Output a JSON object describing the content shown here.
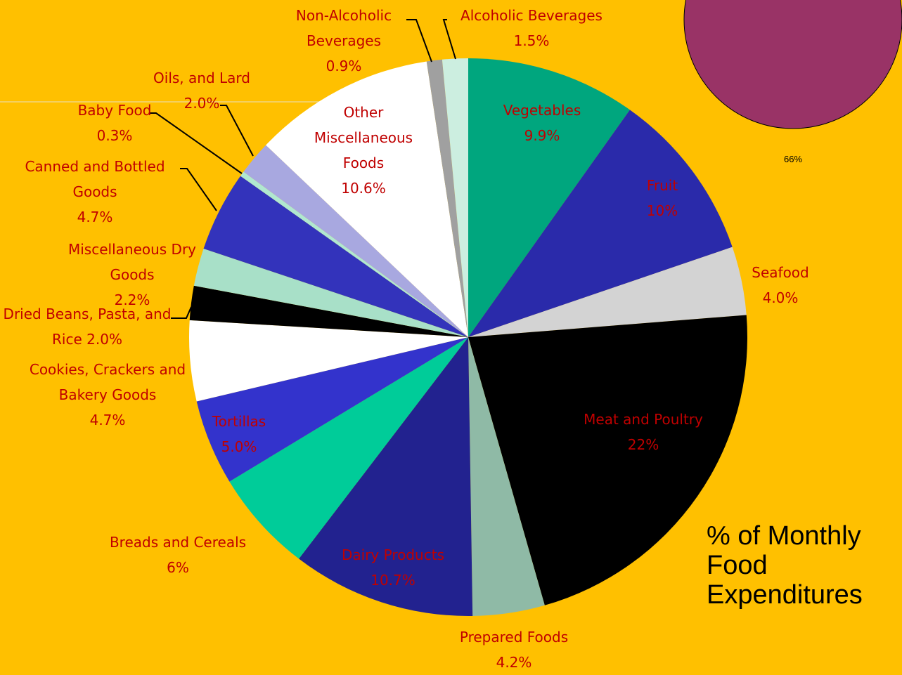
{
  "chart_data": [
    {
      "type": "pie",
      "title": "% of Monthly Food Expenditures",
      "categories": [
        "Vegetables",
        "Fruit",
        "Seafood",
        "Meat and Poultry",
        "Prepared Foods",
        "Dairy Products",
        "Breads and Cereals",
        "Tortillas",
        "Cookies, Crackers and Bakery Goods",
        "Dried Beans, Pasta, and Rice",
        "Miscellaneous Dry Goods",
        "Canned and Bottled Goods",
        "Baby Food",
        "Oils, and Lard",
        "Other Miscellaneous Foods",
        "Non-Alcoholic Beverages",
        "Alcoholic Beverages"
      ],
      "values": [
        9.9,
        10,
        4.0,
        22,
        4.2,
        10.7,
        6,
        5.0,
        4.7,
        2.0,
        2.2,
        4.7,
        0.3,
        2.0,
        10.6,
        0.9,
        1.5
      ],
      "value_labels": [
        "9.9%",
        "10%",
        "4.0%",
        "22%",
        "4.2%",
        "10.7%",
        "6%",
        "5.0%",
        "4.7%",
        "2.0%",
        "2.2%",
        "4.7%",
        "0.3%",
        "2.0%",
        "10.6%",
        "0.9%",
        "1.5%"
      ],
      "colors": [
        "#00a67e",
        "#2a2aaa",
        "#d3d3d3",
        "#000000",
        "#8fbaa6",
        "#22228f",
        "#00cc99",
        "#3333cc",
        "#ffffff",
        "#000000",
        "#a8e0c8",
        "#3333bb",
        "#b0e8d0",
        "#a8a8e0",
        "#ffffff",
        "#a0a0a0",
        "#cceee0"
      ]
    },
    {
      "type": "pie",
      "values": [
        66
      ],
      "value_labels": [
        "66%"
      ],
      "colors": [
        "#993366"
      ]
    }
  ]
}
